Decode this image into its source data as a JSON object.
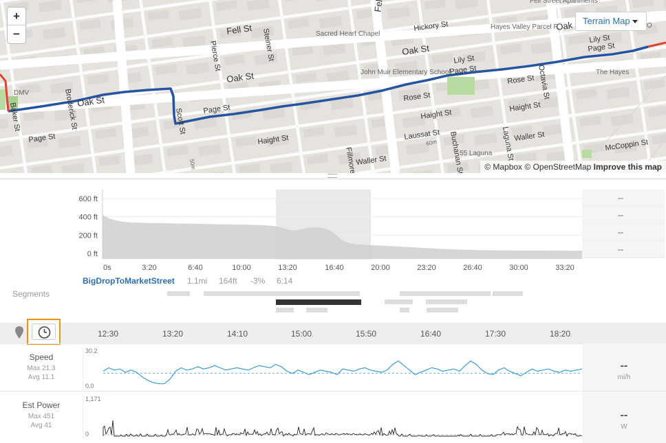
{
  "map": {
    "zoom_in": "+",
    "zoom_out": "−",
    "layer_button": "Terrain Map",
    "attribution": {
      "mapbox": "© Mapbox",
      "osm": "© OpenStreetMap",
      "improve": "Improve this map"
    },
    "labels": [
      "Fell St",
      "Fell St",
      "Hickory St",
      "Oak St",
      "Oak St",
      "Oak St",
      "Oak St",
      "Page St",
      "Page St",
      "Page St",
      "Page St",
      "Lily St",
      "Lily St",
      "Haight St",
      "Haight St",
      "Haight St",
      "Rose St",
      "Rose St",
      "Laussat St",
      "Waller St",
      "Waller St",
      "McCoppin St",
      "Pierce St",
      "Steiner St",
      "Broderick St",
      "Baker St",
      "Scott St",
      "Fillmore St",
      "Buchanan St",
      "Laguna St",
      "Octavia St",
      "Sacred Heart Chapel",
      "Hayes Valley Parcel P",
      "John Muir Elementary School",
      "The Hayes",
      "55 Laguna",
      "DMV",
      "Fell Street Apartments",
      "60m",
      "50m",
      "O"
    ],
    "route_color": "#2554a3",
    "route_alert_color": "#e04030"
  },
  "elevation": {
    "y_ticks": [
      "600 ft",
      "400 ft",
      "200 ft",
      "0 ft"
    ],
    "x_ticks": [
      "0s",
      "3:20",
      "6:40",
      "10:00",
      "13:20",
      "16:40",
      "20:00",
      "23:20",
      "26:40",
      "30:00",
      "33:20"
    ],
    "right_values": [
      "--",
      "--",
      "--",
      "--"
    ],
    "profile_ft": [
      420,
      380,
      360,
      345,
      340,
      336,
      334,
      333,
      331,
      330,
      328,
      327,
      326,
      325,
      323,
      322,
      320,
      318,
      317,
      316,
      315,
      314,
      312,
      310,
      305,
      300,
      285,
      260,
      250,
      265,
      280,
      285,
      278,
      260,
      210,
      140,
      110,
      100,
      96,
      92,
      88,
      84,
      80,
      76,
      72,
      68,
      64,
      60,
      56,
      52,
      48,
      45,
      42,
      40,
      38,
      36,
      35,
      34,
      34,
      33,
      33,
      32,
      32,
      32,
      31,
      31,
      31,
      31,
      30,
      30,
      30
    ]
  },
  "segment": {
    "name": "BigDropToMarketStreet",
    "distance": "1.1mi",
    "elevation": "164ft",
    "grade": "-3%",
    "time": "6:14",
    "label": "Segments"
  },
  "timeline": {
    "ticks": [
      "12:30",
      "13:20",
      "14:10",
      "15:00",
      "15:50",
      "16:40",
      "17:30",
      "18:20"
    ]
  },
  "speed": {
    "name": "Speed",
    "max": "Max 21.3",
    "avg": "Avg 11.1",
    "y_max": "30.2",
    "y_min": "0.0",
    "value": "--",
    "unit": "mi/h",
    "color": "#3a9ad9",
    "series": [
      13,
      16,
      14,
      15,
      12,
      14,
      12,
      8,
      5,
      3,
      2,
      2,
      6,
      13,
      16,
      14,
      15,
      17,
      15,
      16,
      18,
      16,
      14,
      15,
      16,
      15,
      14,
      16,
      18,
      17,
      16,
      19,
      17,
      13,
      11,
      14,
      12,
      10,
      12,
      14,
      13,
      12,
      10,
      15,
      14,
      13,
      15,
      16,
      14,
      13,
      12,
      14,
      19,
      22,
      18,
      14,
      10,
      12,
      14,
      16,
      15,
      13,
      14,
      15,
      13,
      18,
      22,
      19,
      14,
      11,
      10,
      14,
      16,
      13,
      11,
      9,
      12,
      15,
      13,
      14,
      15,
      13,
      12,
      14,
      13,
      14,
      15
    ]
  },
  "power": {
    "name": "Est Power",
    "max": "Max 451",
    "avg": "Avg 41",
    "y_max": "1,171",
    "y_min": "0",
    "value": "--",
    "unit": "W",
    "color": "#222"
  },
  "colors": {
    "accent": "#2a6fb0",
    "highlight": "#f39200"
  }
}
